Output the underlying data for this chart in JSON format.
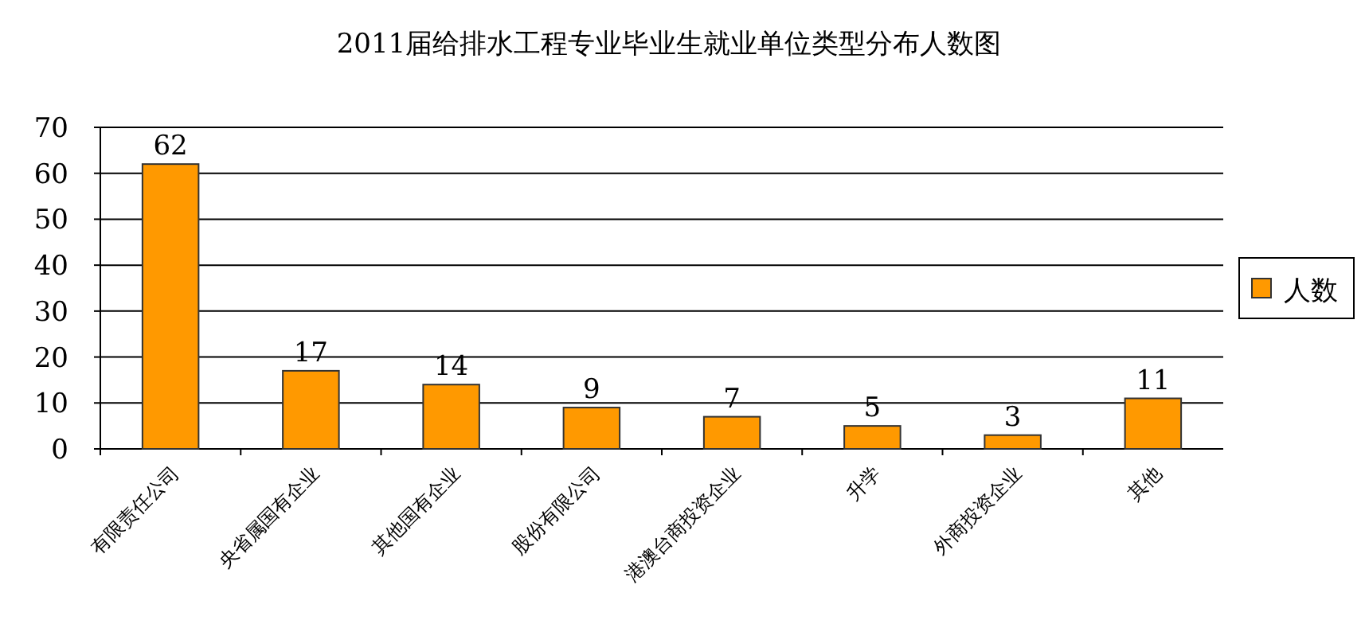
{
  "chart_data": {
    "type": "bar",
    "title": "2011届给排水工程专业毕业生就业单位类型分布人数图",
    "categories": [
      "有限责任公司",
      "央省属国有企业",
      "其他国有企业",
      "股份有限公司",
      "港澳台商投资企业",
      "升学",
      "外商投资企业",
      "其他"
    ],
    "series": [
      {
        "name": "人数",
        "color": "#ff9900",
        "values": [
          62,
          17,
          14,
          9,
          7,
          5,
          3,
          11
        ]
      }
    ],
    "ylim": [
      0,
      70
    ],
    "yticks": [
      0,
      10,
      20,
      30,
      40,
      50,
      60,
      70
    ],
    "grid": "y",
    "legend": "right",
    "data_labels": true
  }
}
